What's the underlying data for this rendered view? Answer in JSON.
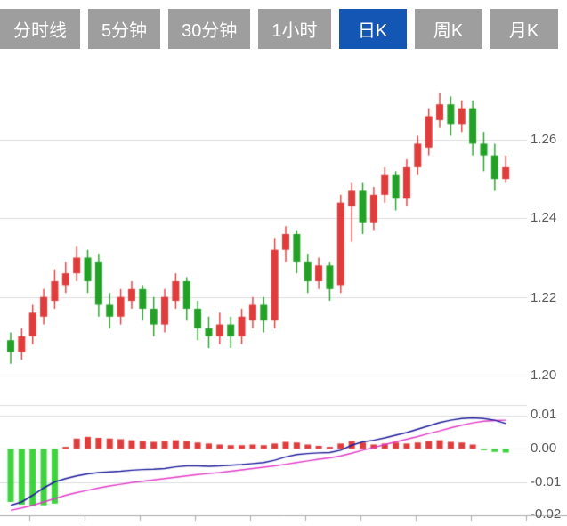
{
  "tabs": {
    "items": [
      {
        "label": "分时线",
        "active": false
      },
      {
        "label": "5分钟",
        "active": false
      },
      {
        "label": "30分钟",
        "active": false
      },
      {
        "label": "1小时",
        "active": false
      },
      {
        "label": "日K",
        "active": true
      },
      {
        "label": "周K",
        "active": false
      },
      {
        "label": "月K",
        "active": false
      }
    ],
    "active_color": "#1356b4",
    "inactive_color": "#9e9e9e"
  },
  "chart_data": {
    "type": "candlestick+macd",
    "main": {
      "type": "candlestick",
      "title": "",
      "y_ticks": [
        "1.26",
        "1.24",
        "1.22",
        "1.20"
      ],
      "grid_levels": [
        1.26,
        1.24,
        1.22,
        1.2
      ],
      "ylim": [
        1.195,
        1.275
      ],
      "up_color": "#e03c3c",
      "down_color": "#23a127",
      "candles": [
        [
          1.209,
          1.211,
          1.203,
          1.206
        ],
        [
          1.206,
          1.212,
          1.204,
          1.21
        ],
        [
          1.21,
          1.218,
          1.208,
          1.216
        ],
        [
          1.215,
          1.222,
          1.213,
          1.22
        ],
        [
          1.219,
          1.227,
          1.217,
          1.224
        ],
        [
          1.223,
          1.229,
          1.221,
          1.226
        ],
        [
          1.226,
          1.233,
          1.224,
          1.23
        ],
        [
          1.23,
          1.232,
          1.221,
          1.224
        ],
        [
          1.229,
          1.231,
          1.215,
          1.218
        ],
        [
          1.218,
          1.221,
          1.212,
          1.215
        ],
        [
          1.215,
          1.222,
          1.213,
          1.22
        ],
        [
          1.219,
          1.224,
          1.217,
          1.222
        ],
        [
          1.222,
          1.223,
          1.214,
          1.217
        ],
        [
          1.217,
          1.22,
          1.21,
          1.213
        ],
        [
          1.213,
          1.222,
          1.211,
          1.22
        ],
        [
          1.219,
          1.226,
          1.217,
          1.224
        ],
        [
          1.224,
          1.225,
          1.214,
          1.217
        ],
        [
          1.217,
          1.219,
          1.209,
          1.212
        ],
        [
          1.212,
          1.215,
          1.207,
          1.21
        ],
        [
          1.21,
          1.216,
          1.208,
          1.213
        ],
        [
          1.213,
          1.215,
          1.207,
          1.21
        ],
        [
          1.21,
          1.217,
          1.208,
          1.215
        ],
        [
          1.214,
          1.22,
          1.212,
          1.218
        ],
        [
          1.218,
          1.22,
          1.211,
          1.214
        ],
        [
          1.214,
          1.235,
          1.212,
          1.232
        ],
        [
          1.232,
          1.238,
          1.229,
          1.236
        ],
        [
          1.236,
          1.237,
          1.226,
          1.229
        ],
        [
          1.229,
          1.231,
          1.221,
          1.224
        ],
        [
          1.224,
          1.23,
          1.222,
          1.228
        ],
        [
          1.228,
          1.229,
          1.219,
          1.222
        ],
        [
          1.223,
          1.246,
          1.221,
          1.244
        ],
        [
          1.243,
          1.249,
          1.234,
          1.247
        ],
        [
          1.247,
          1.249,
          1.236,
          1.239
        ],
        [
          1.239,
          1.248,
          1.237,
          1.246
        ],
        [
          1.246,
          1.253,
          1.244,
          1.251
        ],
        [
          1.251,
          1.252,
          1.242,
          1.245
        ],
        [
          1.245,
          1.255,
          1.243,
          1.253
        ],
        [
          1.253,
          1.261,
          1.251,
          1.259
        ],
        [
          1.258,
          1.268,
          1.256,
          1.266
        ],
        [
          1.265,
          1.272,
          1.263,
          1.269
        ],
        [
          1.269,
          1.271,
          1.261,
          1.264
        ],
        [
          1.264,
          1.27,
          1.262,
          1.268
        ],
        [
          1.268,
          1.27,
          1.256,
          1.259
        ],
        [
          1.259,
          1.262,
          1.252,
          1.256
        ],
        [
          1.256,
          1.259,
          1.247,
          1.25
        ],
        [
          1.25,
          1.256,
          1.249,
          1.253
        ]
      ]
    },
    "indicator": {
      "type": "macd",
      "y_ticks": [
        "0.01",
        "0.00",
        "-0.01",
        "-0.02"
      ],
      "grid_levels": [
        0.01,
        0.0,
        -0.01,
        -0.02
      ],
      "ylim": [
        -0.022,
        0.012
      ],
      "hist_up_color": "#e03c3c",
      "hist_down_color": "#3fd33f",
      "dif_color": "#1a1a99",
      "dea_color": "#e23cc8",
      "histogram": [
        -0.016,
        -0.0168,
        -0.0172,
        -0.017,
        -0.0165,
        0.0005,
        0.003,
        0.0035,
        0.0032,
        0.003,
        0.0028,
        0.0025,
        0.0022,
        0.002,
        0.0022,
        0.0025,
        0.0022,
        0.0018,
        0.0015,
        0.0012,
        0.001,
        0.001,
        0.0012,
        0.001,
        0.0015,
        0.002,
        0.0018,
        0.0012,
        0.0008,
        0.0005,
        0.0015,
        0.0022,
        0.0018,
        0.0012,
        0.0015,
        0.0018,
        0.0015,
        0.0018,
        0.0022,
        0.0025,
        0.002,
        0.0018,
        0.0012,
        -0.0005,
        -0.001,
        -0.0012
      ],
      "dif": [
        -0.017,
        -0.016,
        -0.014,
        -0.0118,
        -0.01,
        -0.009,
        -0.0082,
        -0.0076,
        -0.0072,
        -0.007,
        -0.0068,
        -0.0065,
        -0.0063,
        -0.0062,
        -0.006,
        -0.0055,
        -0.0052,
        -0.0052,
        -0.0053,
        -0.0052,
        -0.005,
        -0.0048,
        -0.0045,
        -0.0042,
        -0.0035,
        -0.0025,
        -0.0018,
        -0.0015,
        -0.0013,
        -0.0012,
        -0.0005,
        0.001,
        0.002,
        0.0025,
        0.0032,
        0.004,
        0.0048,
        0.0058,
        0.0068,
        0.0078,
        0.0085,
        0.009,
        0.0092,
        0.009,
        0.0085,
        0.0075
      ],
      "dea": [
        -0.0185,
        -0.0178,
        -0.017,
        -0.016,
        -0.015,
        -0.014,
        -0.0132,
        -0.0125,
        -0.0118,
        -0.0112,
        -0.0107,
        -0.0102,
        -0.0098,
        -0.0094,
        -0.009,
        -0.0086,
        -0.0082,
        -0.0078,
        -0.0075,
        -0.0072,
        -0.0068,
        -0.0064,
        -0.006,
        -0.0056,
        -0.0052,
        -0.0047,
        -0.0042,
        -0.0037,
        -0.0032,
        -0.0028,
        -0.0022,
        -0.0014,
        -0.0005,
        0.0003,
        0.0012,
        0.002,
        0.0028,
        0.0036,
        0.0045,
        0.0053,
        0.0062,
        0.007,
        0.0077,
        0.0082,
        0.0084,
        0.0085
      ]
    },
    "grid": true,
    "legend": "none"
  }
}
